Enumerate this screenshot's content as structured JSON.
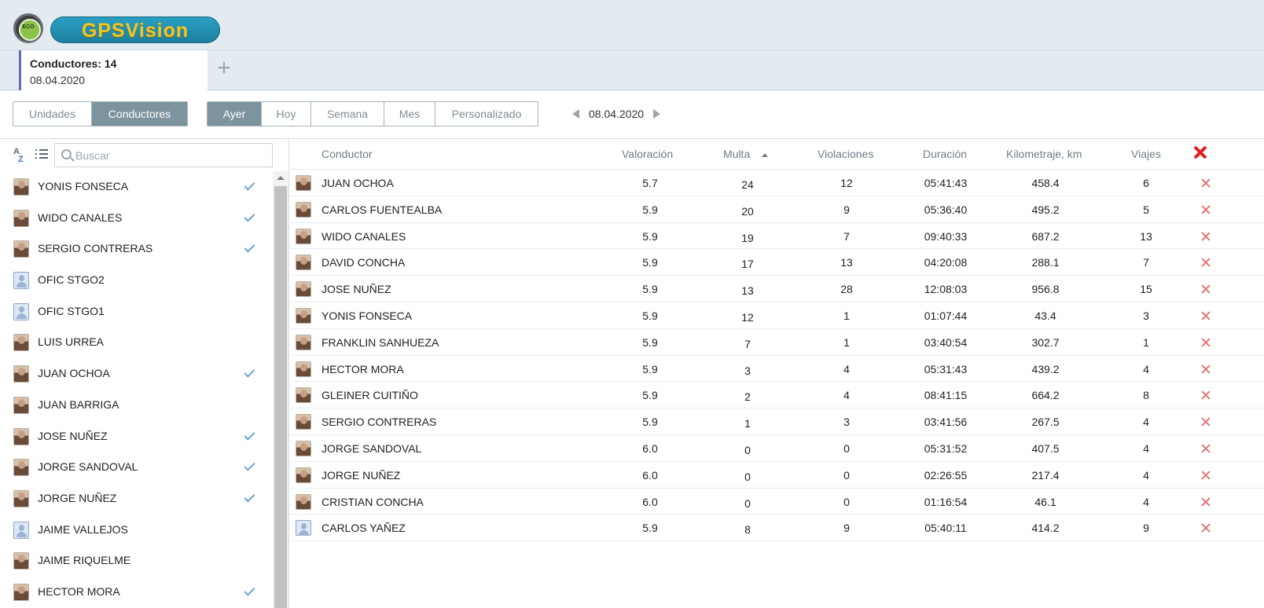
{
  "header": {
    "logo_badge_text": "ECO",
    "logo_text": "GPSVision"
  },
  "tabs": [
    {
      "title": "Conductores: 14",
      "date": "08.04.2020"
    }
  ],
  "toolbar": {
    "mode": [
      {
        "label": "Unidades",
        "active": false
      },
      {
        "label": "Conductores",
        "active": true
      }
    ],
    "period": [
      {
        "label": "Ayer",
        "active": true
      },
      {
        "label": "Hoy",
        "active": false
      },
      {
        "label": "Semana",
        "active": false
      },
      {
        "label": "Mes",
        "active": false
      },
      {
        "label": "Personalizado",
        "active": false
      }
    ],
    "date": "08.04.2020"
  },
  "sidebar": {
    "az_top": "A",
    "az_bottom": "Z",
    "search_placeholder": "Buscar",
    "drivers": [
      {
        "name": "YONIS FONSECA",
        "checked": true,
        "avatar": "photo"
      },
      {
        "name": "WIDO CANALES",
        "checked": true,
        "avatar": "photo"
      },
      {
        "name": "SERGIO CONTRERAS",
        "checked": true,
        "avatar": "photo"
      },
      {
        "name": "OFIC STGO2",
        "checked": false,
        "avatar": "default"
      },
      {
        "name": "OFIC STGO1",
        "checked": false,
        "avatar": "default"
      },
      {
        "name": "LUIS URREA",
        "checked": false,
        "avatar": "photo"
      },
      {
        "name": "JUAN OCHOA",
        "checked": true,
        "avatar": "photo"
      },
      {
        "name": "JUAN BARRIGA",
        "checked": false,
        "avatar": "photo"
      },
      {
        "name": "JOSE NUÑEZ",
        "checked": true,
        "avatar": "photo"
      },
      {
        "name": "JORGE SANDOVAL",
        "checked": true,
        "avatar": "photo"
      },
      {
        "name": "JORGE NUÑEZ",
        "checked": true,
        "avatar": "photo"
      },
      {
        "name": "JAIME VALLEJOS",
        "checked": false,
        "avatar": "default"
      },
      {
        "name": "JAIME RIQUELME",
        "checked": false,
        "avatar": "photo"
      },
      {
        "name": "HECTOR MORA",
        "checked": true,
        "avatar": "photo"
      }
    ]
  },
  "table": {
    "columns": {
      "conductor": "Conductor",
      "valoracion": "Valoración",
      "multa": "Multa",
      "violaciones": "Violaciones",
      "duracion": "Duración",
      "kilometraje": "Kilometraje, km",
      "viajes": "Viajes"
    },
    "rows": [
      {
        "conductor": "JUAN OCHOA",
        "valoracion": "5.7",
        "multa": "24",
        "violaciones": "12",
        "duracion": "05:41:43",
        "kilometraje": "458.4",
        "viajes": "6",
        "avatar": "photo"
      },
      {
        "conductor": "CARLOS FUENTEALBA",
        "valoracion": "5.9",
        "multa": "20",
        "violaciones": "9",
        "duracion": "05:36:40",
        "kilometraje": "495.2",
        "viajes": "5",
        "avatar": "photo"
      },
      {
        "conductor": "WIDO CANALES",
        "valoracion": "5.9",
        "multa": "19",
        "violaciones": "7",
        "duracion": "09:40:33",
        "kilometraje": "687.2",
        "viajes": "13",
        "avatar": "photo"
      },
      {
        "conductor": "DAVID CONCHA",
        "valoracion": "5.9",
        "multa": "17",
        "violaciones": "13",
        "duracion": "04:20:08",
        "kilometraje": "288.1",
        "viajes": "7",
        "avatar": "photo"
      },
      {
        "conductor": "JOSE NUÑEZ",
        "valoracion": "5.9",
        "multa": "13",
        "violaciones": "28",
        "duracion": "12:08:03",
        "kilometraje": "956.8",
        "viajes": "15",
        "avatar": "photo"
      },
      {
        "conductor": "YONIS FONSECA",
        "valoracion": "5.9",
        "multa": "12",
        "violaciones": "1",
        "duracion": "01:07:44",
        "kilometraje": "43.4",
        "viajes": "3",
        "avatar": "photo"
      },
      {
        "conductor": "FRANKLIN SANHUEZA",
        "valoracion": "5.9",
        "multa": "7",
        "violaciones": "1",
        "duracion": "03:40:54",
        "kilometraje": "302.7",
        "viajes": "1",
        "avatar": "photo"
      },
      {
        "conductor": "HECTOR MORA",
        "valoracion": "5.9",
        "multa": "3",
        "violaciones": "4",
        "duracion": "05:31:43",
        "kilometraje": "439.2",
        "viajes": "4",
        "avatar": "photo"
      },
      {
        "conductor": "GLEINER CUITIÑO",
        "valoracion": "5.9",
        "multa": "2",
        "violaciones": "4",
        "duracion": "08:41:15",
        "kilometraje": "664.2",
        "viajes": "8",
        "avatar": "photo"
      },
      {
        "conductor": "SERGIO CONTRERAS",
        "valoracion": "5.9",
        "multa": "1",
        "violaciones": "3",
        "duracion": "03:41:56",
        "kilometraje": "267.5",
        "viajes": "4",
        "avatar": "photo"
      },
      {
        "conductor": "JORGE SANDOVAL",
        "valoracion": "6.0",
        "multa": "0",
        "violaciones": "0",
        "duracion": "05:31:52",
        "kilometraje": "407.5",
        "viajes": "4",
        "avatar": "photo"
      },
      {
        "conductor": "JORGE NUÑEZ",
        "valoracion": "6.0",
        "multa": "0",
        "violaciones": "0",
        "duracion": "02:26:55",
        "kilometraje": "217.4",
        "viajes": "4",
        "avatar": "photo"
      },
      {
        "conductor": "CRISTIAN CONCHA",
        "valoracion": "6.0",
        "multa": "0",
        "violaciones": "0",
        "duracion": "01:16:54",
        "kilometraje": "46.1",
        "viajes": "4",
        "avatar": "photo"
      },
      {
        "conductor": "CARLOS YAÑEZ",
        "valoracion": "5.9",
        "multa": "8",
        "violaciones": "9",
        "duracion": "05:40:11",
        "kilometraje": "414.2",
        "viajes": "9",
        "avatar": "default"
      }
    ]
  },
  "colors": {
    "accent": "#7d939f",
    "tab_marker": "#5b6fb8",
    "check": "#6aa7cf",
    "delete": "#e01f1f"
  }
}
